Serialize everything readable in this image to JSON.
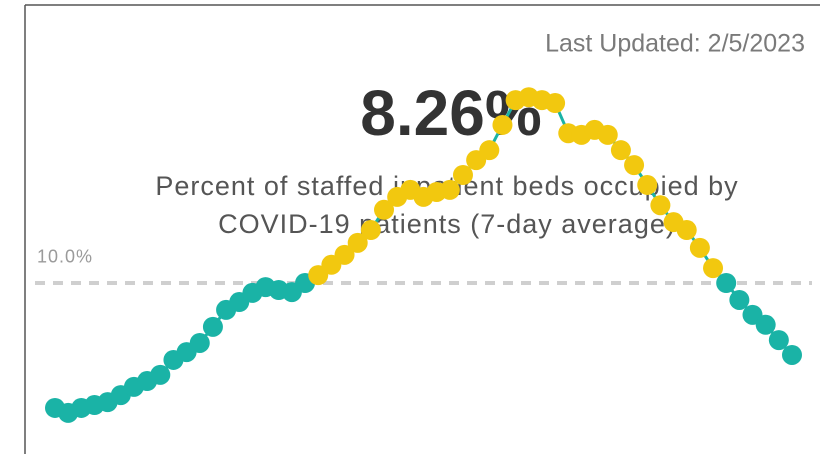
{
  "chart_data": {
    "type": "line",
    "updated_label": "Last Updated:  2/5/2023",
    "headline": "8.26%",
    "subtitle": [
      "Percent of staffed inpatient beds occupied by",
      "COVID-19 patients (7-day average)"
    ],
    "values": [
      6.98,
      6.86,
      6.98,
      7.05,
      7.12,
      7.29,
      7.49,
      7.63,
      7.78,
      8.14,
      8.33,
      8.55,
      8.94,
      9.35,
      9.54,
      9.76,
      9.9,
      9.83,
      9.78,
      10.0,
      10.19,
      10.44,
      10.68,
      10.97,
      11.28,
      11.77,
      12.08,
      12.25,
      12.08,
      12.2,
      12.25,
      12.61,
      12.97,
      13.21,
      13.82,
      14.42,
      14.49,
      14.42,
      14.35,
      13.62,
      13.58,
      13.7,
      13.58,
      13.21,
      12.85,
      12.37,
      11.88,
      11.47,
      11.28,
      10.85,
      10.36,
      10.0,
      9.59,
      9.23,
      8.99,
      8.62,
      8.26
    ],
    "ylim": [
      6.5,
      14.8
    ],
    "reference_line": {
      "value": 10,
      "label": "10.0%"
    },
    "color": "#1ab3a6",
    "color_above": "#f2c80f"
  }
}
